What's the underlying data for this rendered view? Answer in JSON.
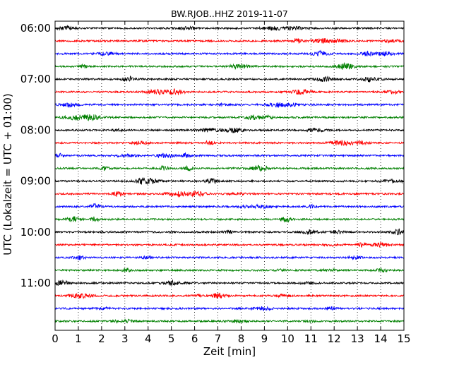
{
  "chart_data": {
    "type": "line",
    "title": "BW.RJOB..HHZ 2019-11-07",
    "xlabel": "Zeit  [min]",
    "ylabel": "UTC (Lokalzeit = UTC + 01:00)",
    "xlim": [
      0,
      15
    ],
    "x_ticks": [
      "0",
      "1",
      "2",
      "3",
      "4",
      "5",
      "6",
      "7",
      "8",
      "9",
      "10",
      "11",
      "12",
      "13",
      "14",
      "15"
    ],
    "y_tick_labels": [
      "06:00",
      "07:00",
      "08:00",
      "09:00",
      "10:00",
      "11:00"
    ],
    "grid": "vertical dotted",
    "trace_colors": [
      "#000000",
      "#ff0000",
      "#0000ff",
      "#008000"
    ],
    "trace_start_times": [
      "06:00",
      "06:15",
      "06:30",
      "06:45",
      "07:00",
      "07:15",
      "07:30",
      "07:45",
      "08:00",
      "08:15",
      "08:30",
      "08:45",
      "09:00",
      "09:15",
      "09:30",
      "09:45",
      "10:00",
      "10:15",
      "10:30",
      "10:45",
      "11:00",
      "11:15",
      "11:30",
      "11:45"
    ]
  }
}
